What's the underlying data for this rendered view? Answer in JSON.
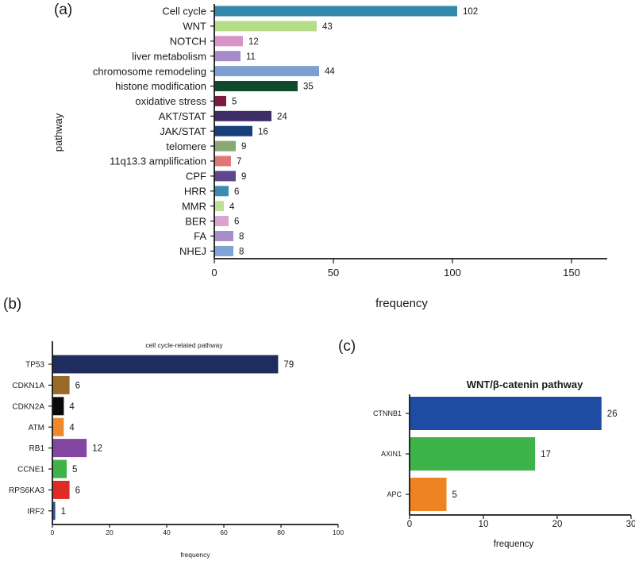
{
  "chart_data": [
    {
      "type": "bar",
      "orientation": "horizontal",
      "panel_label": "(a)",
      "title": "",
      "xlabel": "frequency",
      "ylabel": "pathway",
      "xlim": [
        0,
        165
      ],
      "xticks": [
        0,
        50,
        100,
        150
      ],
      "categories": [
        "Cell cycle",
        "WNT",
        "NOTCH",
        "liver metabolism",
        "chromosome remodeling",
        "histone modification",
        "oxidative stress",
        "AKT/STAT",
        "JAK/STAT",
        "telomere",
        "11q13.3 amplification",
        "CPF",
        "HRR",
        "MMR",
        "BER",
        "FA",
        "NHEJ"
      ],
      "values": [
        102,
        43,
        12,
        11,
        44,
        35,
        5,
        24,
        16,
        9,
        7,
        9,
        6,
        4,
        6,
        8,
        8
      ],
      "colors": [
        "#3389a9",
        "#b5dc87",
        "#d894c8",
        "#a58bc7",
        "#7d9ed0",
        "#0f4a2c",
        "#7a1b3f",
        "#3f2d68",
        "#163f7c",
        "#8aa874",
        "#e07678",
        "#5f478e",
        "#3a8cb3",
        "#bfe094",
        "#d9a2cf",
        "#a88ec9",
        "#7fa3d4"
      ]
    },
    {
      "type": "bar",
      "orientation": "horizontal",
      "panel_label": "(b)",
      "title": "cell cycle-related pathway",
      "xlabel": "frequency",
      "ylabel": "",
      "xlim": [
        0,
        100
      ],
      "xticks": [
        0,
        20,
        40,
        60,
        80,
        100
      ],
      "categories": [
        "TP53",
        "CDKN1A",
        "CDKN2A",
        "ATM",
        "RB1",
        "CCNE1",
        "RPS6KA3",
        "IRF2"
      ],
      "values": [
        79,
        6,
        4,
        4,
        12,
        5,
        6,
        1
      ],
      "colors": [
        "#1e2c5e",
        "#9a6a2a",
        "#0a0a0a",
        "#ef8a2a",
        "#8245a0",
        "#3eb34a",
        "#e02a26",
        "#2c52a5"
      ]
    },
    {
      "type": "bar",
      "orientation": "horizontal",
      "panel_label": "(c)",
      "title": "WNT/β-catenin pathway",
      "xlabel": "frequency",
      "ylabel": "",
      "xlim": [
        0,
        30
      ],
      "xticks": [
        0,
        10,
        20,
        30
      ],
      "categories": [
        "CTNNB1",
        "AXIN1",
        "APC"
      ],
      "values": [
        26,
        17,
        5
      ],
      "colors": [
        "#1f4ca3",
        "#3eb34a",
        "#ef8322"
      ]
    }
  ]
}
